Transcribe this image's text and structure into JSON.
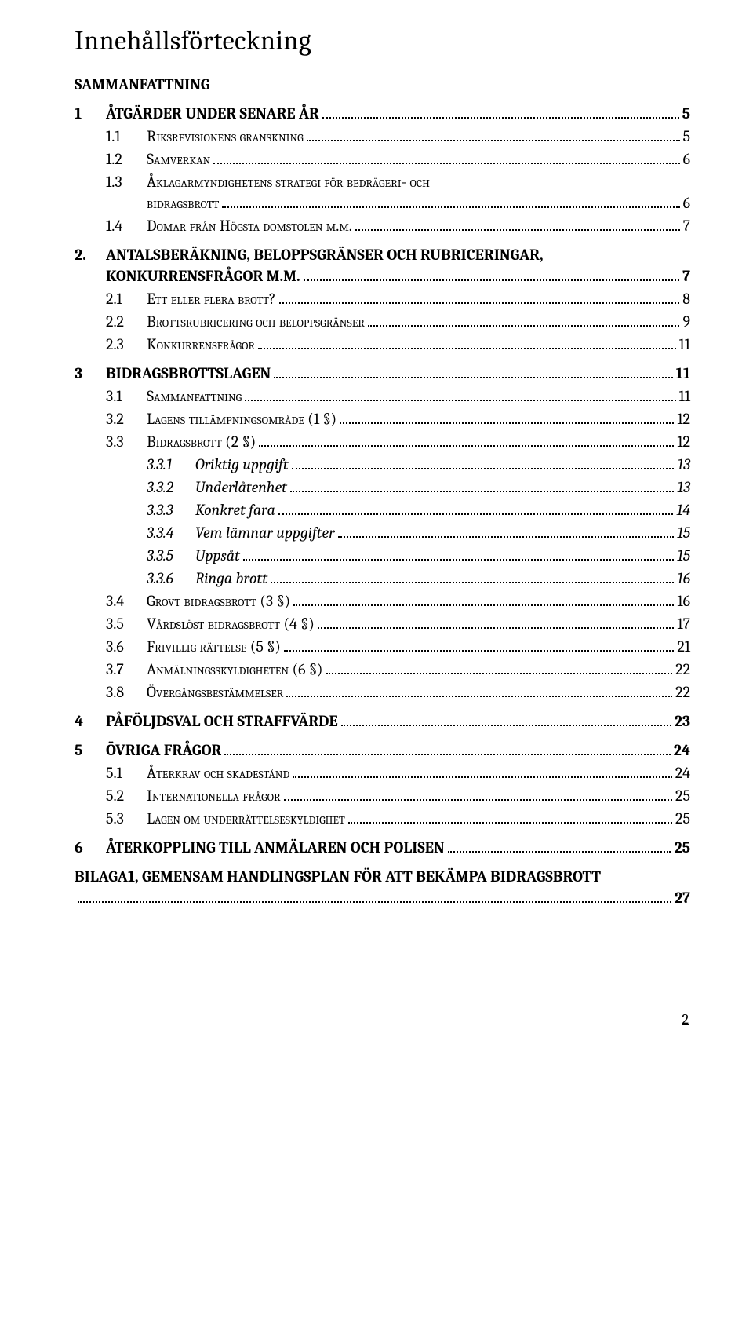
{
  "title": "Innehållsförteckning",
  "footer_page": "2",
  "entries": [
    {
      "level": "top-np",
      "label": "SAMMANFATTNING"
    },
    {
      "level": "top",
      "num": "1",
      "label": "ÅTGÄRDER UNDER SENARE ÅR",
      "page": "5"
    },
    {
      "level": "2",
      "num": "1.1",
      "label": "Riksrevisionens granskning",
      "page": "5"
    },
    {
      "level": "2",
      "num": "1.2",
      "label": "Samverkan",
      "page": "6"
    },
    {
      "level": "2",
      "num": "1.3",
      "label": "Åklagarmyndighetens strategi för bedrägeri- och bidragsbrott",
      "page": "6"
    },
    {
      "level": "2",
      "num": "1.4",
      "label": "Domar från Högsta domstolen m.m.",
      "page": "7"
    },
    {
      "level": "top",
      "num": "2.",
      "label": "ANTALSBERÄKNING, BELOPPSGRÄNSER OCH RUBRICERINGAR, KONKURRENSFRÅGOR M.M.",
      "page": "7"
    },
    {
      "level": "2",
      "num": "2.1",
      "label": "Ett eller flera brott?",
      "page": "8"
    },
    {
      "level": "2",
      "num": "2.2",
      "label": "Brottsrubricering och beloppsgränser",
      "page": "9"
    },
    {
      "level": "2",
      "num": "2.3",
      "label": "Konkurrensfrågor",
      "page": "11"
    },
    {
      "level": "top",
      "num": "3",
      "label": "BIDRAGSBROTTSLAGEN",
      "page": "11"
    },
    {
      "level": "2",
      "num": "3.1",
      "label": "Sammanfattning",
      "page": "11"
    },
    {
      "level": "2",
      "num": "3.2",
      "label": "Lagens tillämpningsområde (1 §)",
      "page": "12"
    },
    {
      "level": "2",
      "num": "3.3",
      "label": "Bidragsbrott (2 §)",
      "page": "12"
    },
    {
      "level": "3",
      "num": "3.3.1",
      "label": "Oriktig uppgift",
      "page": "13"
    },
    {
      "level": "3",
      "num": "3.3.2",
      "label": "Underlåtenhet",
      "page": "13"
    },
    {
      "level": "3",
      "num": "3.3.3",
      "label": "Konkret fara",
      "page": "14"
    },
    {
      "level": "3",
      "num": "3.3.4",
      "label": "Vem lämnar uppgifter",
      "page": "15"
    },
    {
      "level": "3",
      "num": "3.3.5",
      "label": "Uppsåt",
      "page": "15"
    },
    {
      "level": "3",
      "num": "3.3.6",
      "label": "Ringa brott",
      "page": "16"
    },
    {
      "level": "2",
      "num": "3.4",
      "label": "Grovt bidragsbrott (3 §)",
      "page": "16"
    },
    {
      "level": "2",
      "num": "3.5",
      "label": "Vårdslöst bidragsbrott (4 §)",
      "page": "17"
    },
    {
      "level": "2",
      "num": "3.6",
      "label": "Frivillig rättelse (5 §)",
      "page": "21"
    },
    {
      "level": "2",
      "num": "3.7",
      "label": "Anmälningsskyldigheten (6 §)",
      "page": "22"
    },
    {
      "level": "2",
      "num": "3.8",
      "label": "Övergångsbestämmelser",
      "page": "22"
    },
    {
      "level": "top",
      "num": "4",
      "label": "PÅFÖLJDSVAL OCH STRAFFVÄRDE",
      "page": "23"
    },
    {
      "level": "top",
      "num": "5",
      "label": "ÖVRIGA FRÅGOR",
      "page": "24"
    },
    {
      "level": "2",
      "num": "5.1",
      "label": "Återkrav och skadestånd",
      "page": "24"
    },
    {
      "level": "2",
      "num": "5.2",
      "label": "Internationella frågor",
      "page": "25"
    },
    {
      "level": "2",
      "num": "5.3",
      "label": "Lagen om underrättelseskyldighet",
      "page": "25"
    },
    {
      "level": "top",
      "num": "6",
      "label": "ÅTERKOPPLING TILL ANMÄLAREN OCH POLISEN",
      "page": "25"
    },
    {
      "level": "bilaga",
      "label": "BILAGA1, GEMENSAM HANDLINGSPLAN FÖR ATT BEKÄMPA BIDRAGSBROTT",
      "page": "27"
    }
  ]
}
